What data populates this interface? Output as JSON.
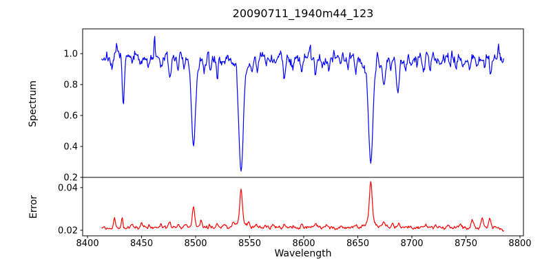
{
  "chart_data": {
    "type": "line",
    "title": "20090711_1940m44_123",
    "xlabel": "Wavelength",
    "xlim": [
      8395.5,
      8803.2
    ],
    "x_ticks": [
      8400,
      8450,
      8500,
      8550,
      8600,
      8650,
      8700,
      8750,
      8800
    ],
    "x_tick_labels": [
      "8400",
      "8450",
      "8500",
      "8550",
      "8600",
      "8650",
      "8700",
      "8750",
      "8800"
    ],
    "grid": false,
    "legend": "none",
    "panels": [
      {
        "name": "spectrum",
        "ylabel": "Spectrum",
        "ylim": [
          0.2,
          1.16
        ],
        "y_ticks": [
          0.2,
          0.4,
          0.6,
          0.8,
          1.0
        ],
        "y_tick_labels": [
          "0.2",
          "0.4",
          "0.6",
          "0.8",
          "1.0"
        ],
        "line_color": "#0000ff",
        "base_level": 0.975,
        "data_range": [
          8413,
          8785
        ],
        "sample_step": 0.6,
        "feature_sign": -1,
        "noise": {
          "seed": 7,
          "phi": 0.45,
          "sigma": 0.018
        },
        "noise_damp": 1.2,
        "features_comment": "absorption lines [center_wavelength, depth, sigma]; negative depth = upward noise spike; strong Ca II triplet at 8498, 8542, 8662",
        "features": [
          [
            8423,
            0.1,
            0.9
          ],
          [
            8427,
            -0.1,
            0.5
          ],
          [
            8433,
            0.28,
            1.0
          ],
          [
            8441,
            0.05,
            0.8
          ],
          [
            8449,
            0.07,
            0.9
          ],
          [
            8456,
            0.05,
            0.8
          ],
          [
            8462,
            -0.11,
            0.5
          ],
          [
            8468,
            0.07,
            0.9
          ],
          [
            8476,
            0.13,
            1.1
          ],
          [
            8484,
            0.05,
            0.8
          ],
          [
            8490,
            0.06,
            0.8
          ],
          [
            8498,
            0.47,
            1.7
          ],
          [
            8498,
            0.1,
            4.0
          ],
          [
            8508,
            0.1,
            0.9
          ],
          [
            8514,
            0.08,
            0.9
          ],
          [
            8520,
            0.12,
            1.0
          ],
          [
            8527,
            0.06,
            0.9
          ],
          [
            8537.5,
            -0.12,
            0.5
          ],
          [
            8542,
            0.64,
            2.0
          ],
          [
            8542,
            0.1,
            5.0
          ],
          [
            8552,
            0.1,
            0.9
          ],
          [
            8557,
            0.08,
            0.9
          ],
          [
            8565,
            0.05,
            0.8
          ],
          [
            8574,
            0.05,
            0.8
          ],
          [
            8582,
            0.1,
            1.0
          ],
          [
            8590,
            0.06,
            0.8
          ],
          [
            8598,
            0.08,
            0.9
          ],
          [
            8606,
            -0.07,
            0.5
          ],
          [
            8611,
            0.1,
            0.9
          ],
          [
            8617,
            0.06,
            0.8
          ],
          [
            8623,
            0.08,
            0.9
          ],
          [
            8628,
            -0.06,
            0.5
          ],
          [
            8634,
            0.05,
            0.8
          ],
          [
            8641,
            0.06,
            0.8
          ],
          [
            8648,
            0.07,
            0.9
          ],
          [
            8662,
            0.59,
            1.9
          ],
          [
            8662,
            0.09,
            5.0
          ],
          [
            8668,
            -0.05,
            0.5
          ],
          [
            8674,
            0.19,
            1.2
          ],
          [
            8681,
            0.06,
            0.8
          ],
          [
            8687,
            0.22,
            1.3
          ],
          [
            8694,
            0.06,
            0.8
          ],
          [
            8699,
            0.07,
            0.9
          ],
          [
            8705,
            0.05,
            0.8
          ],
          [
            8711,
            0.09,
            0.9
          ],
          [
            8717,
            0.08,
            0.9
          ],
          [
            8727,
            0.07,
            0.9
          ],
          [
            8735,
            0.08,
            0.9
          ],
          [
            8741,
            0.05,
            0.8
          ],
          [
            8747,
            0.06,
            0.8
          ],
          [
            8753,
            0.06,
            0.8
          ],
          [
            8760,
            0.05,
            0.8
          ],
          [
            8767,
            0.06,
            0.8
          ],
          [
            8773,
            0.1,
            0.9
          ],
          [
            8780,
            -0.08,
            0.5
          ]
        ]
      },
      {
        "name": "error",
        "ylabel": "Error",
        "ylim": [
          0.0174,
          0.0448
        ],
        "y_ticks": [
          0.02,
          0.04
        ],
        "y_tick_labels": [
          "0.02",
          "0.04"
        ],
        "line_color": "#ff0000",
        "base_level": 0.0213,
        "data_range": [
          8413,
          8785
        ],
        "sample_step": 0.6,
        "feature_sign": 1,
        "noise": {
          "seed": 12,
          "phi": 0.4,
          "sigma": 0.00035
        },
        "noise_damp": 40,
        "end_droop": {
          "start": 8776,
          "rate": 8e-05
        },
        "features_comment": "error spikes [center_wavelength, height, sigma]; peaks ~0.031 @8498, ~0.040 @8542, ~0.043 @8662",
        "features": [
          [
            8425,
            0.0048,
            0.7
          ],
          [
            8432,
            0.0048,
            0.7
          ],
          [
            8441,
            0.0018,
            0.8
          ],
          [
            8450,
            0.0022,
            0.8
          ],
          [
            8457,
            0.0012,
            0.8
          ],
          [
            8468,
            0.0016,
            0.8
          ],
          [
            8476,
            0.0028,
            0.9
          ],
          [
            8484,
            0.0012,
            0.8
          ],
          [
            8491,
            0.0012,
            0.8
          ],
          [
            8498,
            0.0085,
            1.0
          ],
          [
            8498,
            0.0015,
            3.0
          ],
          [
            8505,
            0.003,
            0.9
          ],
          [
            8513,
            0.0012,
            0.8
          ],
          [
            8520,
            0.002,
            0.9
          ],
          [
            8527,
            0.0014,
            0.9
          ],
          [
            8535,
            0.0022,
            0.8
          ],
          [
            8542,
            0.0155,
            1.1
          ],
          [
            8542,
            0.0028,
            4.0
          ],
          [
            8549,
            0.0022,
            1.0
          ],
          [
            8556,
            0.0014,
            0.9
          ],
          [
            8565,
            0.0012,
            0.9
          ],
          [
            8572,
            0.0014,
            0.9
          ],
          [
            8582,
            0.0018,
            0.9
          ],
          [
            8590,
            0.001,
            0.8
          ],
          [
            8598,
            0.0014,
            0.9
          ],
          [
            8611,
            0.002,
            0.9
          ],
          [
            8621,
            0.0014,
            0.9
          ],
          [
            8634,
            0.0012,
            0.9
          ],
          [
            8648,
            0.0014,
            0.9
          ],
          [
            8662,
            0.0175,
            1.2
          ],
          [
            8662,
            0.004,
            4.0
          ],
          [
            8674,
            0.0028,
            1.3
          ],
          [
            8682,
            0.0018,
            1.0
          ],
          [
            8688,
            0.0018,
            1.0
          ],
          [
            8699,
            0.0012,
            0.9
          ],
          [
            8713,
            0.0014,
            0.9
          ],
          [
            8722,
            0.001,
            0.9
          ],
          [
            8733,
            0.001,
            0.9
          ],
          [
            8745,
            0.0014,
            0.9
          ],
          [
            8756,
            0.0032,
            1.2
          ],
          [
            8765,
            0.0048,
            0.9
          ],
          [
            8772,
            0.0042,
            1.1
          ]
        ]
      }
    ]
  }
}
